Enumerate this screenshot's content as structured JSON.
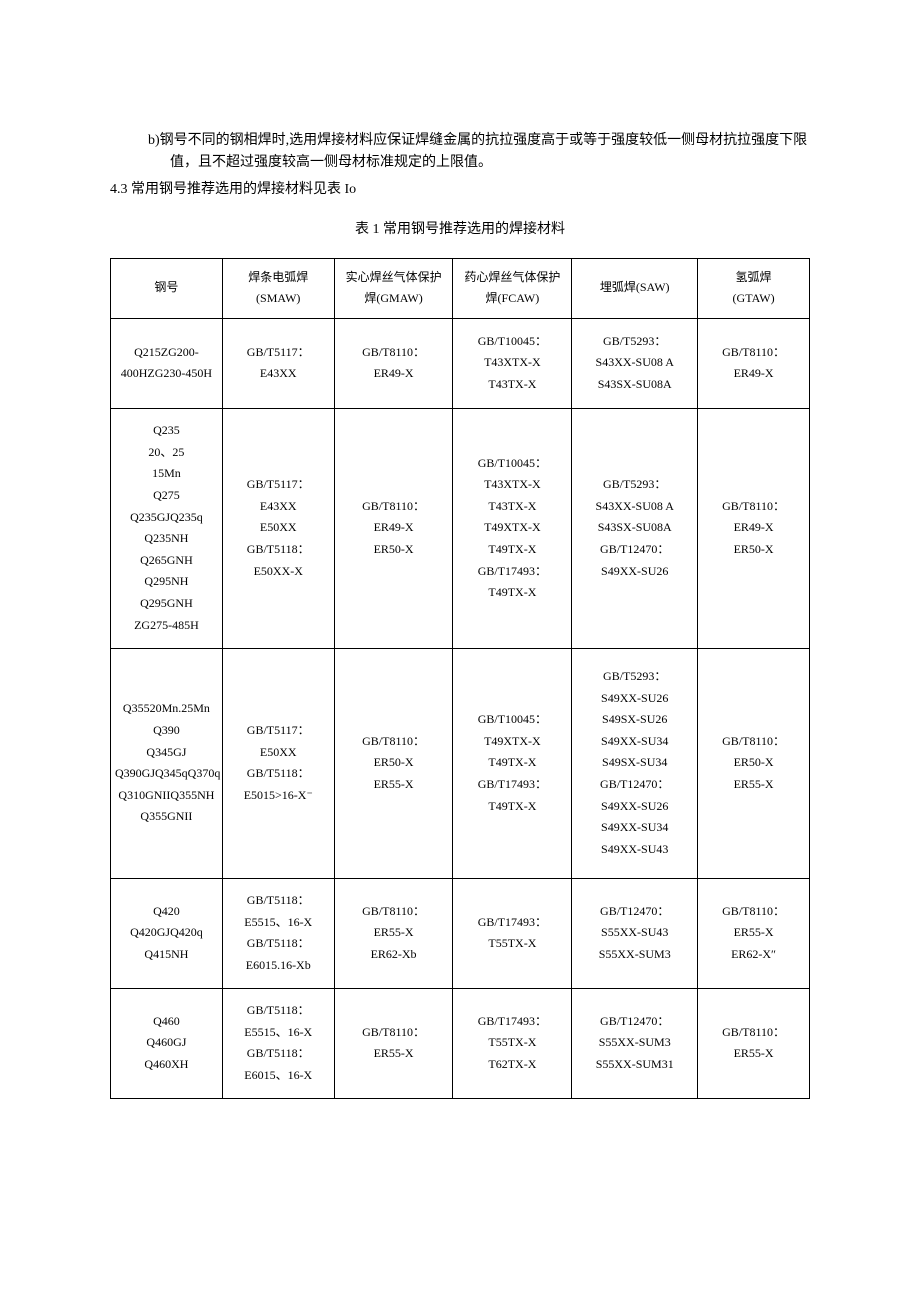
{
  "paragraphs": {
    "b": "b)钢号不同的钢相焊时,选用焊接材料应保证焊缝金属的抗拉强度高于或等于强度较低一侧母材抗拉强度下限值，且不超过强度较高一侧母材标准规定的上限值。",
    "item_43": "4.3 常用钢号推荐选用的焊接材料见表 Io"
  },
  "table": {
    "caption": "表 1 常用钢号推荐选用的焊接材料",
    "columns": [
      "钢号",
      "焊条电弧焊\n(SMAW)",
      "实心焊丝气体保护\n焊(GMAW)",
      "药心焊丝气体保护\n焊(FCAW)",
      "埋弧焊(SAW)",
      "氢弧焊\n(GTAW)"
    ],
    "rows": [
      [
        "Q215ZG200-\n400HZG230-450H",
        "GB/T5117：\nE43XX",
        "GB/T8110：\nER49-X",
        "GB/T10045：\nT43XTX-X\nT43TX-X",
        "GB/T5293：\nS43XX-SU08 A\nS43SX-SU08A",
        "GB/T8110：\nER49-X"
      ],
      [
        "Q235\n20、25\n15Mn\nQ275\nQ235GJQ235q\nQ235NH\nQ265GNH\nQ295NH\nQ295GNH\nZG275-485H",
        "GB/T5117：\nE43XX\nE50XX\nGB/T5118：\nE50XX-X",
        "GB/T8110：\nER49-X\nER50-X",
        "GB/T10045：\nT43XTX-X\nT43TX-X\nT49XTX-X\nT49TX-X\nGB/T17493：\nT49TX-X",
        "GB/T5293：\nS43XX-SU08 A\nS43SX-SU08A\nGB/T12470：\nS49XX-SU26",
        "GB/T8110：\nER49-X\nER50-X"
      ],
      [
        "Q35520Mn.25Mn\nQ390\nQ345GJ\nQ390GJQ345qQ370q\nQ310GNIIQ355NH\nQ355GNII",
        "GB/T5117：\nE50XX\nGB/T5118：\nE5015>16-X⁻",
        "GB/T8110：\nER50-X\nER55-X",
        "GB/T10045：\nT49XTX-X\nT49TX-X\nGB/T17493：\nT49TX-X",
        "GB/T5293：\nS49XX-SU26\nS49SX-SU26\nS49XX-SU34\nS49SX-SU34\nGB/T12470：\nS49XX-SU26\nS49XX-SU34\nS49XX-SU43",
        "GB/T8110：\nER50-X\nER55-X"
      ],
      [
        "Q420\nQ420GJQ420q\nQ415NH",
        "GB/T5118：\nE5515、16-X\nGB/T5118：\nE6015.16-Xb",
        "GB/T8110：\nER55-X\nER62-Xb",
        "GB/T17493：\nT55TX-X",
        "GB/T12470：\nS55XX-SU43\nS55XX-SUM3",
        "GB/T8110：\nER55-X\nER62-X″"
      ],
      [
        "Q460\nQ460GJ\nQ460XH",
        "GB/T5118：\nE5515、16-X\nGB/T5118：\nE6015、16-X",
        "GB/T8110：\nER55-X",
        "GB/T17493：\nT55TX-X\nT62TX-X",
        "GB/T12470：\nS55XX-SUM3\nS55XX-SUM31",
        "GB/T8110：\nER55-X"
      ]
    ]
  }
}
